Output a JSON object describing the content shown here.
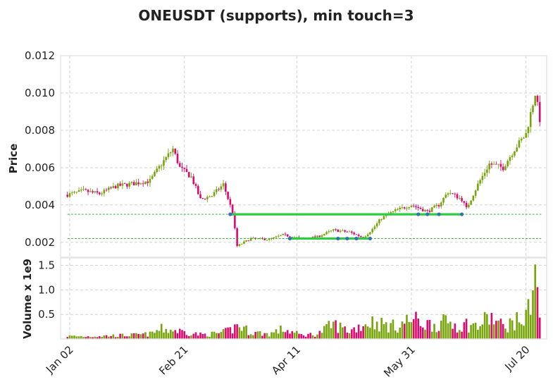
{
  "chart_data": {
    "type": "candlestick",
    "title": "ONEUSDT (supports), min touch=3",
    "price_panel": {
      "ylabel": "Price",
      "ylim": [
        0.0012,
        0.012
      ],
      "yticks": [
        0.002,
        0.004,
        0.006,
        0.008,
        0.01,
        0.012
      ],
      "ytick_labels": [
        "0.002",
        "0.004",
        "0.006",
        "0.008",
        "0.010",
        "0.012"
      ]
    },
    "volume_panel": {
      "ylabel": "Volume x 1e9",
      "ylim": [
        0,
        1.65
      ],
      "yticks": [
        0.5,
        1.0,
        1.5
      ],
      "ytick_labels": [
        "0.5",
        "1.0",
        "1.5"
      ]
    },
    "x_axis": {
      "start_date": "2021-12-29",
      "end_date": "2022-07-29",
      "ticks": [
        {
          "date": "2022-01-02",
          "label": "Jan 02"
        },
        {
          "date": "2022-02-21",
          "label": "Feb 21"
        },
        {
          "date": "2022-04-11",
          "label": "Apr 11"
        },
        {
          "date": "2022-05-31",
          "label": "May 31"
        },
        {
          "date": "2022-07-20",
          "label": "Jul 20"
        }
      ]
    },
    "anchors": [
      {
        "date": "2022-01-01",
        "close": 0.00455,
        "volume": 0.06
      },
      {
        "date": "2022-01-08",
        "close": 0.00475,
        "volume": 0.05
      },
      {
        "date": "2022-01-15",
        "close": 0.0046,
        "volume": 0.06
      },
      {
        "date": "2022-01-22",
        "close": 0.005,
        "volume": 0.07
      },
      {
        "date": "2022-01-30",
        "close": 0.00515,
        "volume": 0.08
      },
      {
        "date": "2022-02-06",
        "close": 0.0053,
        "volume": 0.1
      },
      {
        "date": "2022-02-11",
        "close": 0.0062,
        "volume": 0.2
      },
      {
        "date": "2022-02-16",
        "close": 0.007,
        "volume": 0.18
      },
      {
        "date": "2022-02-19",
        "close": 0.006,
        "volume": 0.16
      },
      {
        "date": "2022-02-24",
        "close": 0.0055,
        "volume": 0.12
      },
      {
        "date": "2022-02-28",
        "close": 0.0043,
        "volume": 0.09
      },
      {
        "date": "2022-03-05",
        "close": 0.0045,
        "volume": 0.1
      },
      {
        "date": "2022-03-10",
        "close": 0.0051,
        "volume": 0.13
      },
      {
        "date": "2022-03-14",
        "close": 0.0036,
        "volume": 0.2
      },
      {
        "date": "2022-03-16",
        "close": 0.0018,
        "volume": 0.28
      },
      {
        "date": "2022-03-22",
        "close": 0.0022,
        "volume": 0.14
      },
      {
        "date": "2022-03-30",
        "close": 0.00215,
        "volume": 0.1
      },
      {
        "date": "2022-04-05",
        "close": 0.0024,
        "volume": 0.2
      },
      {
        "date": "2022-04-13",
        "close": 0.0022,
        "volume": 0.08
      },
      {
        "date": "2022-04-20",
        "close": 0.0023,
        "volume": 0.1
      },
      {
        "date": "2022-04-27",
        "close": 0.00265,
        "volume": 0.3
      },
      {
        "date": "2022-05-04",
        "close": 0.00255,
        "volume": 0.16
      },
      {
        "date": "2022-05-10",
        "close": 0.00225,
        "volume": 0.3
      },
      {
        "date": "2022-05-14",
        "close": 0.0027,
        "volume": 0.35
      },
      {
        "date": "2022-05-18",
        "close": 0.0033,
        "volume": 0.3
      },
      {
        "date": "2022-05-24",
        "close": 0.0037,
        "volume": 0.25
      },
      {
        "date": "2022-05-31",
        "close": 0.004,
        "volume": 0.4
      },
      {
        "date": "2022-06-07",
        "close": 0.00365,
        "volume": 0.3
      },
      {
        "date": "2022-06-12",
        "close": 0.004,
        "volume": 0.3
      },
      {
        "date": "2022-06-16",
        "close": 0.0047,
        "volume": 0.35
      },
      {
        "date": "2022-06-22",
        "close": 0.0043,
        "volume": 0.25
      },
      {
        "date": "2022-06-24",
        "close": 0.0038,
        "volume": 0.3
      },
      {
        "date": "2022-06-29",
        "close": 0.0051,
        "volume": 0.25
      },
      {
        "date": "2022-07-04",
        "close": 0.0062,
        "volume": 0.45
      },
      {
        "date": "2022-07-10",
        "close": 0.006,
        "volume": 0.25
      },
      {
        "date": "2022-07-15",
        "close": 0.007,
        "volume": 0.35
      },
      {
        "date": "2022-07-20",
        "close": 0.0078,
        "volume": 0.4
      },
      {
        "date": "2022-07-24",
        "close": 0.01,
        "volume": 1.5
      },
      {
        "date": "2022-07-26",
        "close": 0.0086,
        "volume": 0.35
      }
    ],
    "support_lines": [
      {
        "level": 0.0035,
        "touch_start": "2022-03-13",
        "touch_end": "2022-06-22",
        "touches": [
          "2022-03-13",
          "2022-06-03",
          "2022-06-07",
          "2022-06-12",
          "2022-06-22"
        ]
      },
      {
        "level": 0.0022,
        "touch_start": "2022-04-08",
        "touch_end": "2022-05-13",
        "touches": [
          "2022-04-08",
          "2022-04-29",
          "2022-05-03",
          "2022-05-07",
          "2022-05-13"
        ]
      }
    ],
    "colors": {
      "up": "#76a40a",
      "down": "#dc0a6e",
      "support_solid": "#2ecc40",
      "support_dashed": "#22aa22",
      "touch_marker": "#3a6fb5",
      "grid": "#cccccc",
      "frame": "#e3e3e3"
    },
    "grid": true
  }
}
